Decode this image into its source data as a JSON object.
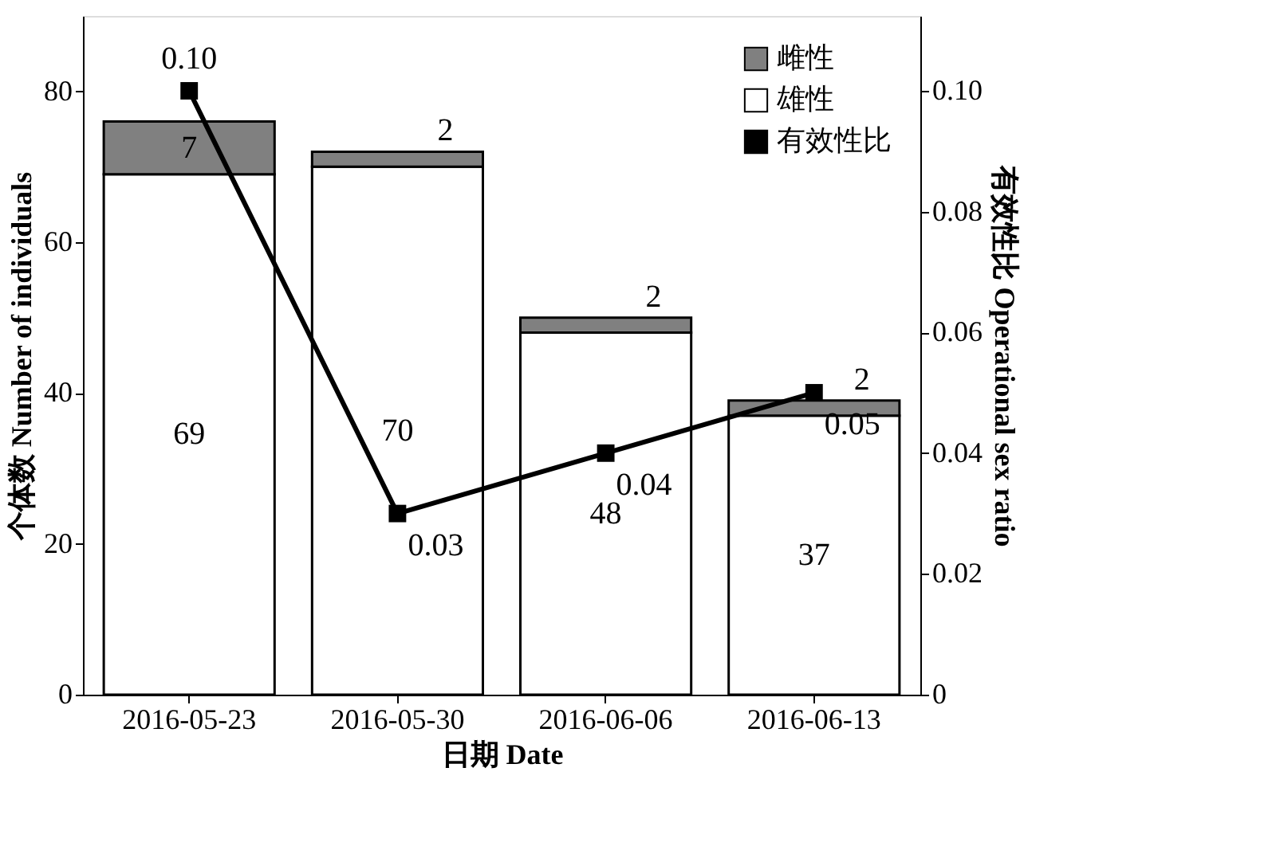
{
  "chart_data": {
    "type": "bar",
    "stacked": true,
    "xlabel": "日期 Date",
    "ylabel": "个体数 Number of individuals",
    "y2label": "有效性比 Operational sex ratio",
    "categories": [
      "2016-05-23",
      "2016-05-30",
      "2016-06-06",
      "2016-06-13"
    ],
    "series": [
      {
        "name": "雄性",
        "color": "#ffffff",
        "values": [
          69,
          70,
          48,
          37
        ]
      },
      {
        "name": "雌性",
        "color": "#808080",
        "values": [
          7,
          2,
          2,
          2
        ]
      },
      {
        "name": "有效性比",
        "type": "line",
        "axis": "y2",
        "color": "#000000",
        "values": [
          0.1,
          0.03,
          0.04,
          0.05
        ],
        "value_labels": [
          "0.10",
          "0.03",
          "0.04",
          "0.05"
        ]
      }
    ],
    "data_labels": true,
    "ylim": [
      0,
      90
    ],
    "yticks": [
      0,
      20,
      40,
      60,
      80
    ],
    "y2lim": [
      0,
      0.1124
    ],
    "y2ticks": [
      {
        "value": 0,
        "label": "0"
      },
      0.02,
      0.04,
      0.06,
      0.08,
      {
        "value": 0.1,
        "label": "0.10"
      }
    ],
    "grid": false,
    "legend": "top right",
    "marker": "square",
    "line_style": "solid"
  }
}
